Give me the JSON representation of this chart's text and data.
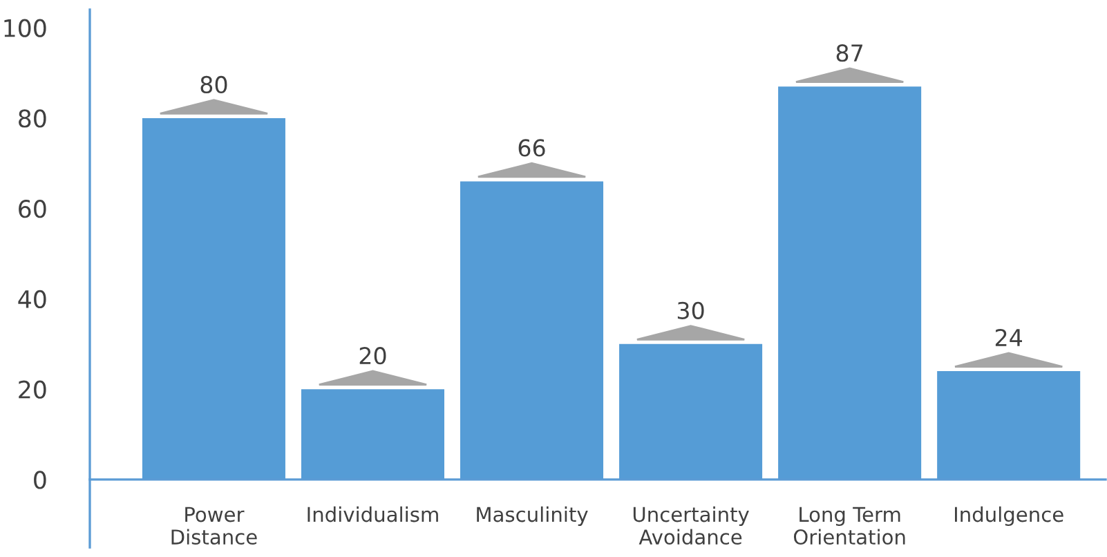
{
  "chart_data": {
    "type": "bar",
    "categories": [
      "Power\nDistance",
      "Individualism",
      "Masculinity",
      "Uncertainty\nAvoidance",
      "Long Term\nOrientation",
      "Indulgence"
    ],
    "values": [
      80,
      20,
      66,
      30,
      87,
      24
    ],
    "color": "#559cd6",
    "data_labels": true,
    "ylim": [
      -15,
      104
    ],
    "yticks": [
      0,
      20,
      40,
      60,
      80,
      100
    ],
    "grid": false,
    "legend": false
  }
}
